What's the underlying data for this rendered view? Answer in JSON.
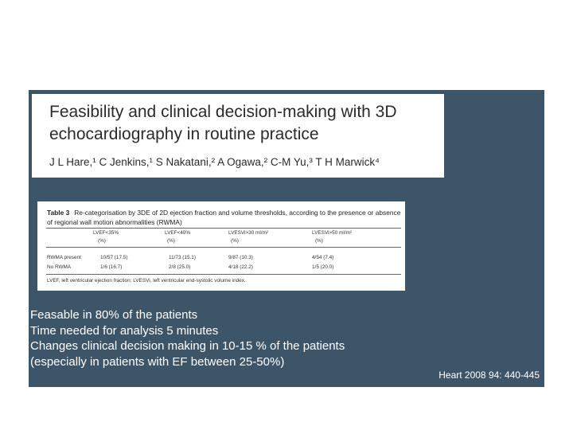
{
  "paper": {
    "title": "Feasibility and clinical decision-making with 3D echocardiography in routine practice",
    "authors": "J L Hare,¹ C Jenkins,¹ S Nakatani,² A Ogawa,² C-M Yu,³ T H Marwick⁴"
  },
  "table": {
    "label": "Table 3",
    "caption": "Re-categorisation by 3DE of 2D ejection fraction and volume thresholds, according to the presence or absence of regional wall motion abnormalities (RWMA)",
    "columns": [
      {
        "name": "LVEF<35%",
        "unit": "(%)"
      },
      {
        "name": "LVEF<40%",
        "unit": "(%)"
      },
      {
        "name": "LVESVi>30 ml/m²",
        "unit": "(%)"
      },
      {
        "name": "LVESVi>50 ml/m²",
        "unit": "(%)"
      }
    ],
    "rows": [
      {
        "label": "RWMA present",
        "cells": [
          "10/57 (17.5)",
          "11/73 (15.1)",
          "9/87 (10.3)",
          "4/54 (7.4)"
        ]
      },
      {
        "label": "No RWMA",
        "cells": [
          "1/6 (16.7)",
          "2/8 (25.0)",
          "4/18 (22.2)",
          "1/5 (20.0)"
        ]
      }
    ],
    "footnote": "LVEF, left ventricular ejection fraction; LVESVi, left ventricular end-systolic volume index."
  },
  "bullets": [
    "Feasable in 80% of the patients",
    "Time needed for analysis 5 minutes",
    "Changes clinical decision making in 10-15 % of the patients",
    "(especially in patients with EF  between 25-50%)"
  ],
  "citation": "Heart 2008 94: 440-445",
  "colors": {
    "panel_background": "#3d5568",
    "page_background": "#ffffff",
    "text_on_panel": "#ffffff"
  }
}
